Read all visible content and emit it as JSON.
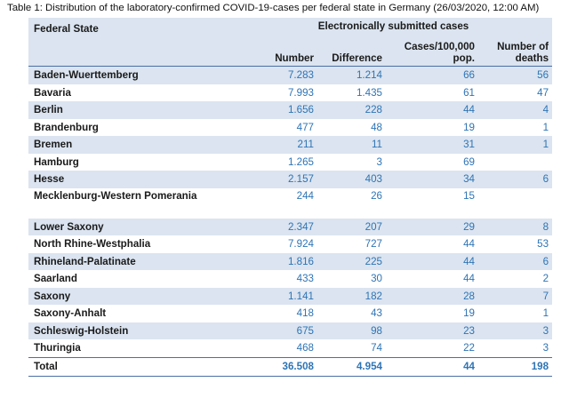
{
  "caption": "Table 1: Distribution of the laboratory-confirmed COVID-19-cases per federal state in Germany (26/03/2020, 12:00 AM)",
  "table": {
    "header": {
      "state": "Federal State",
      "group": "Electronically submitted cases",
      "number": "Number",
      "difference": "Difference",
      "cases_per_100k": "Cases/100,000 pop.",
      "deaths": "Number of deaths"
    },
    "rows": [
      {
        "state": "Baden-Wuerttemberg",
        "number": "7.283",
        "difference": "1.214",
        "cases": "66",
        "deaths": "56"
      },
      {
        "state": "Bavaria",
        "number": "7.993",
        "difference": "1.435",
        "cases": "61",
        "deaths": "47"
      },
      {
        "state": "Berlin",
        "number": "1.656",
        "difference": "228",
        "cases": "44",
        "deaths": "4"
      },
      {
        "state": "Brandenburg",
        "number": "477",
        "difference": "48",
        "cases": "19",
        "deaths": "1"
      },
      {
        "state": "Bremen",
        "number": "211",
        "difference": "11",
        "cases": "31",
        "deaths": "1"
      },
      {
        "state": "Hamburg",
        "number": "1.265",
        "difference": "3",
        "cases": "69",
        "deaths": ""
      },
      {
        "state": "Hesse",
        "number": "2.157",
        "difference": "403",
        "cases": "34",
        "deaths": "6"
      },
      {
        "state": "Mecklenburg-Western Pomerania",
        "number": "244",
        "difference": "26",
        "cases": "15",
        "deaths": ""
      },
      {
        "state": "Lower Saxony",
        "number": "2.347",
        "difference": "207",
        "cases": "29",
        "deaths": "8"
      },
      {
        "state": "North Rhine-Westphalia",
        "number": "7.924",
        "difference": "727",
        "cases": "44",
        "deaths": "53"
      },
      {
        "state": "Rhineland-Palatinate",
        "number": "1.816",
        "difference": "225",
        "cases": "44",
        "deaths": "6"
      },
      {
        "state": "Saarland",
        "number": "433",
        "difference": "30",
        "cases": "44",
        "deaths": "2"
      },
      {
        "state": "Saxony",
        "number": "1.141",
        "difference": "182",
        "cases": "28",
        "deaths": "7"
      },
      {
        "state": "Saxony-Anhalt",
        "number": "418",
        "difference": "43",
        "cases": "19",
        "deaths": "1"
      },
      {
        "state": "Schleswig-Holstein",
        "number": "675",
        "difference": "98",
        "cases": "23",
        "deaths": "3"
      },
      {
        "state": "Thuringia",
        "number": "468",
        "difference": "74",
        "cases": "22",
        "deaths": "3"
      }
    ],
    "total": {
      "state": "Total",
      "number": "36.508",
      "difference": "4.954",
      "cases": "44",
      "deaths": "198"
    }
  },
  "colors": {
    "header_band": "#dbe4f0",
    "value_text": "#2e74b5",
    "rule": "#4a6fa5"
  }
}
